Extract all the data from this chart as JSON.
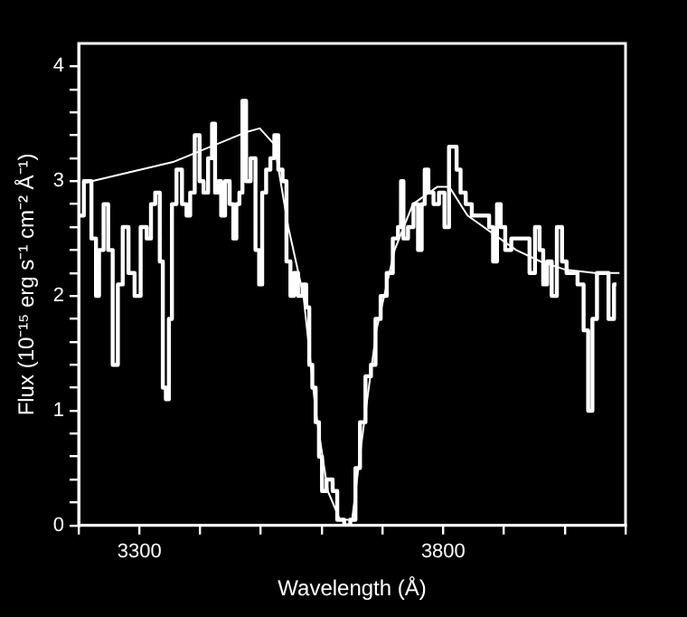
{
  "chart_data": {
    "type": "step",
    "xlabel": "Wavelength (Å)",
    "ylabel": "Flux (10⁻¹⁵ erg s⁻¹ cm⁻² Å⁻¹)",
    "xlim": [
      3200,
      4100
    ],
    "ylim": [
      0,
      4.2
    ],
    "xticks": [
      {
        "value": 3200,
        "label": null
      },
      3300,
      {
        "value": 3400,
        "label": null
      },
      {
        "value": 3500,
        "label": null
      },
      {
        "value": 3600,
        "label": null
      },
      {
        "value": 3700,
        "label": null
      },
      3800,
      {
        "value": 3900,
        "label": null
      },
      {
        "value": 4000,
        "label": null
      },
      {
        "value": 4100,
        "label": null
      }
    ],
    "yticks": [
      0,
      {
        "value": 0.2,
        "label": null
      },
      {
        "value": 0.4,
        "label": null
      },
      {
        "value": 0.6,
        "label": null
      },
      {
        "value": 0.8,
        "label": null
      },
      1,
      {
        "value": 1.2,
        "label": null
      },
      {
        "value": 1.4,
        "label": null
      },
      {
        "value": 1.6,
        "label": null
      },
      {
        "value": 1.8,
        "label": null
      },
      2,
      {
        "value": 2.2,
        "label": null
      },
      {
        "value": 2.4,
        "label": null
      },
      {
        "value": 2.6,
        "label": null
      },
      {
        "value": 2.8,
        "label": null
      },
      3,
      {
        "value": 3.2,
        "label": null
      },
      {
        "value": 3.4,
        "label": null
      },
      {
        "value": 3.6,
        "label": null
      },
      {
        "value": 3.8,
        "label": null
      },
      4
    ],
    "grid": false,
    "legend": false,
    "series": [
      {
        "color": "#ffffff",
        "x": [
          3201,
          3216,
          3226,
          3231,
          3236,
          3246,
          3251,
          3261,
          3268,
          3277,
          3287,
          3297,
          3307,
          3317,
          3321,
          3331,
          3336,
          3341,
          3346,
          3351,
          3356,
          3366,
          3374,
          3381,
          3386,
          3396,
          3402,
          3409,
          3417,
          3422,
          3427,
          3432,
          3437,
          3445,
          3452,
          3457,
          3462,
          3467,
          3472,
          3479,
          3487,
          3495,
          3499,
          3505,
          3512,
          3519,
          3525,
          3532,
          3539,
          3545,
          3552,
          3557,
          3565,
          3572,
          3577,
          3582,
          3587,
          3593,
          3598,
          3603,
          3613,
          3623,
          3628,
          3632,
          3642,
          3652,
          3659,
          3667,
          3677,
          3685,
          3692,
          3702,
          3712,
          3722,
          3729,
          3732,
          3737,
          3747,
          3755,
          3762,
          3767,
          3772,
          3779,
          3789,
          3797,
          3807,
          3812,
          3819,
          3825,
          3832,
          3842,
          3852,
          3862,
          3872,
          3879,
          3885,
          3892,
          3897,
          3907,
          3917,
          3927,
          3937,
          3947,
          3955,
          3962,
          3967,
          3975,
          3982,
          3992,
          3999,
          4007,
          4015,
          4027,
          4035,
          4042,
          4049,
          4057,
          4067,
          4077,
          4085
        ],
        "values": [
          2.7,
          3.0,
          2.5,
          2.0,
          2.4,
          2.8,
          2.4,
          1.4,
          2.1,
          2.6,
          2.2,
          2.0,
          2.6,
          2.5,
          2.8,
          2.9,
          2.3,
          1.2,
          1.1,
          1.8,
          2.8,
          3.1,
          2.8,
          2.7,
          2.9,
          3.4,
          3.0,
          2.9,
          3.2,
          3.5,
          2.9,
          3.0,
          2.7,
          3.0,
          2.8,
          2.5,
          2.8,
          2.9,
          3.7,
          3.0,
          3.2,
          2.4,
          2.1,
          2.9,
          3.1,
          3.2,
          3.4,
          3.1,
          3.0,
          2.3,
          2.0,
          2.2,
          2.0,
          2.1,
          1.9,
          1.4,
          1.2,
          0.9,
          0.6,
          0.3,
          0.4,
          0.3,
          0.05,
          0.05,
          0,
          0.05,
          0.5,
          0.9,
          1.3,
          1.4,
          1.8,
          2.0,
          2.2,
          2.5,
          2.6,
          3.0,
          2.5,
          2.6,
          2.8,
          2.4,
          2.8,
          3.1,
          2.9,
          2.8,
          2.9,
          2.6,
          3.3,
          3.3,
          3.1,
          2.9,
          2.8,
          2.7,
          2.7,
          2.7,
          2.6,
          2.3,
          2.8,
          2.6,
          2.4,
          2.5,
          2.5,
          2.5,
          2.2,
          2.6,
          2.4,
          2.1,
          2.3,
          2.0,
          2.6,
          2.3,
          2.2,
          2.2,
          2.1,
          1.7,
          1.0,
          1.8,
          2.2,
          2.2,
          1.8,
          2.1
        ]
      },
      {
        "type": "line",
        "color": "#ffffff",
        "x": [
          3206,
          3357,
          3477,
          3498,
          3522,
          3545,
          3570,
          3590,
          3610,
          3630,
          3650,
          3665,
          3690,
          3720,
          3750,
          3790,
          3810,
          3840,
          3880,
          3920,
          3960,
          4000,
          4050,
          4090
        ],
        "values": [
          2.98,
          3.17,
          3.43,
          3.46,
          3.32,
          2.6,
          2.0,
          1.0,
          0.3,
          0.05,
          0.05,
          0.7,
          1.7,
          2.4,
          2.8,
          2.95,
          2.95,
          2.7,
          2.55,
          2.4,
          2.3,
          2.23,
          2.2,
          2.2
        ]
      }
    ]
  }
}
